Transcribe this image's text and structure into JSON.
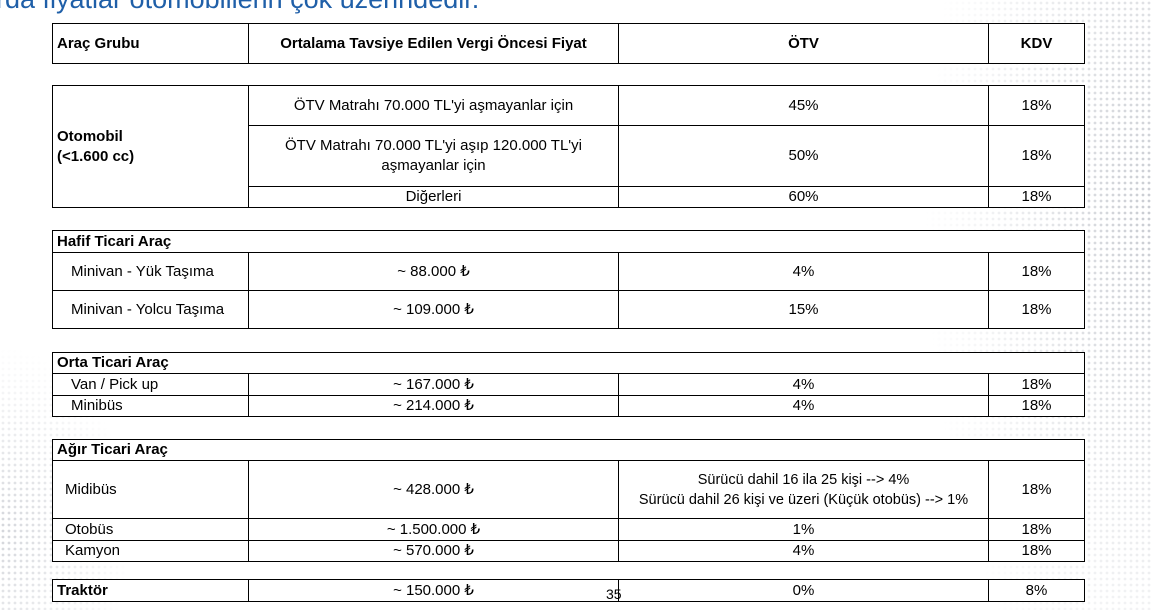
{
  "heading": "rda fiyatlar otomobillerin çok üzerindedir.",
  "header": {
    "col1": "Araç Grubu",
    "col2": "Ortalama Tavsiye Edilen Vergi Öncesi Fiyat",
    "col3": "ÖTV",
    "col4": "KDV"
  },
  "otomobil": {
    "label_line1": "Otomobil",
    "label_line2": "(<1.600 cc)",
    "rows": [
      {
        "desc": "ÖTV Matrahı 70.000 TL'yi aşmayanlar için",
        "otv": "45%",
        "kdv": "18%"
      },
      {
        "desc_line1": "ÖTV Matrahı 70.000 TL'yi aşıp 120.000 TL'yi",
        "desc_line2": "aşmayanlar için",
        "otv": "50%",
        "kdv": "18%"
      },
      {
        "desc": "Diğerleri",
        "otv": "60%",
        "kdv": "18%"
      }
    ]
  },
  "hafif": {
    "title": "Hafif Ticari Araç",
    "rows": [
      {
        "name": "Minivan - Yük Taşıma",
        "price": "~ 88.000 ₺",
        "otv": "4%",
        "kdv": "18%"
      },
      {
        "name": "Minivan - Yolcu Taşıma",
        "price": "~ 109.000 ₺",
        "otv": "15%",
        "kdv": "18%"
      }
    ]
  },
  "orta": {
    "title": "Orta Ticari Araç",
    "rows": [
      {
        "name": "Van / Pick up",
        "price": "~ 167.000 ₺",
        "otv": "4%",
        "kdv": "18%"
      },
      {
        "name": "Minibüs",
        "price": "~ 214.000 ₺",
        "otv": "4%",
        "kdv": "18%"
      }
    ]
  },
  "agir": {
    "title": "Ağır Ticari Araç",
    "midibus": {
      "name": "Midibüs",
      "price": "~ 428.000 ₺",
      "otv_line1": "Sürücü dahil 16 ila 25 kişi --> 4%",
      "otv_line2": "Sürücü dahil 26 kişi ve üzeri (Küçük otobüs) --> 1%",
      "kdv": "18%"
    },
    "rows": [
      {
        "name": "Otobüs",
        "price": "~ 1.500.000 ₺",
        "otv": "1%",
        "kdv": "18%"
      },
      {
        "name": "Kamyon",
        "price": "~ 570.000 ₺",
        "otv": "4%",
        "kdv": "18%"
      }
    ]
  },
  "traktor": {
    "name": "Traktör",
    "price": "~ 150.000 ₺",
    "otv": "0%",
    "kdv": "8%"
  },
  "page_number": "35"
}
